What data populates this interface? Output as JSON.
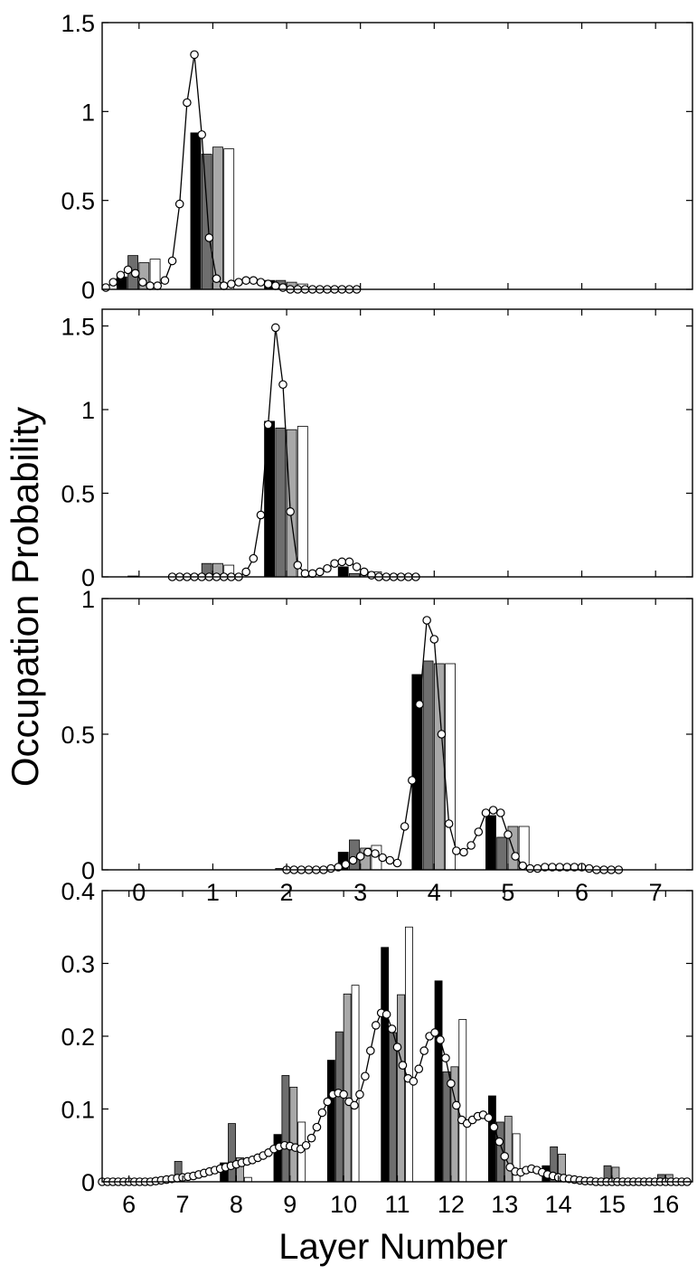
{
  "figure": {
    "ylabel": "Occupation Probability",
    "xlabel": "Layer Number"
  },
  "chart_data": [
    {
      "type": "bar",
      "panel": 1,
      "xlim": [
        -0.5,
        7.5
      ],
      "ylim": [
        0,
        1.5
      ],
      "xticks": [
        0,
        1,
        2,
        3,
        4,
        5,
        6,
        7
      ],
      "xtick_labels_visible": false,
      "yticks": [
        0,
        0.5,
        1,
        1.5
      ],
      "ytick_labels": [
        "0",
        "0.5",
        "1",
        "1.5"
      ],
      "bar_colors": [
        "#000000",
        "#6e6e6e",
        "#a8a8a8",
        "#ffffff"
      ],
      "bar_groups": [
        {
          "x": 0,
          "values": [
            0.07,
            0.19,
            0.15,
            0.17
          ]
        },
        {
          "x": 1,
          "values": [
            0.88,
            0.76,
            0.8,
            0.79
          ]
        },
        {
          "x": 2,
          "values": [
            0.05,
            0.05,
            0.04,
            0.03
          ]
        }
      ],
      "curve": {
        "x": [
          -0.45,
          -0.35,
          -0.25,
          -0.15,
          -0.05,
          0.05,
          0.15,
          0.25,
          0.35,
          0.45,
          0.55,
          0.65,
          0.75,
          0.85,
          0.95,
          1.05,
          1.15,
          1.25,
          1.35,
          1.45,
          1.55,
          1.65,
          1.75,
          1.85,
          1.95,
          2.05,
          2.15,
          2.25,
          2.35,
          2.45,
          2.55,
          2.65,
          2.75,
          2.85,
          2.95
        ],
        "y": [
          0.01,
          0.04,
          0.08,
          0.11,
          0.09,
          0.04,
          0.02,
          0.02,
          0.05,
          0.16,
          0.48,
          1.05,
          1.32,
          0.87,
          0.29,
          0.06,
          0.02,
          0.03,
          0.04,
          0.05,
          0.05,
          0.04,
          0.03,
          0.02,
          0.01,
          0.0,
          0.0,
          0.0,
          0.0,
          0.0,
          0.0,
          0.0,
          0.0,
          0.0,
          0.0
        ]
      }
    },
    {
      "type": "bar",
      "panel": 2,
      "xlim": [
        -0.5,
        7.5
      ],
      "ylim": [
        0,
        1.6
      ],
      "xticks": [
        0,
        1,
        2,
        3,
        4,
        5,
        6,
        7
      ],
      "xtick_labels_visible": false,
      "yticks": [
        0,
        0.5,
        1,
        1.5
      ],
      "ytick_labels": [
        "0",
        "0.5",
        "1",
        "1.5"
      ],
      "bar_colors": [
        "#000000",
        "#6e6e6e",
        "#a8a8a8",
        "#ffffff"
      ],
      "bar_groups": [
        {
          "x": 0,
          "values": [
            0.0,
            0.005,
            0.0,
            0.0
          ]
        },
        {
          "x": 1,
          "values": [
            0.0,
            0.08,
            0.08,
            0.07
          ]
        },
        {
          "x": 2,
          "values": [
            0.93,
            0.89,
            0.88,
            0.9
          ]
        },
        {
          "x": 3,
          "values": [
            0.06,
            0.02,
            0.03,
            0.03
          ]
        }
      ],
      "curve": {
        "x": [
          0.45,
          0.55,
          0.65,
          0.75,
          0.85,
          0.95,
          1.05,
          1.15,
          1.25,
          1.35,
          1.45,
          1.55,
          1.65,
          1.75,
          1.85,
          1.95,
          2.05,
          2.15,
          2.25,
          2.35,
          2.45,
          2.55,
          2.65,
          2.75,
          2.85,
          2.95,
          3.05,
          3.15,
          3.25,
          3.35,
          3.45,
          3.55,
          3.65,
          3.75
        ],
        "y": [
          0.0,
          0.0,
          0.0,
          0.0,
          0.0,
          0.0,
          0.0,
          0.0,
          0.0,
          0.0,
          0.03,
          0.11,
          0.37,
          0.91,
          1.49,
          1.15,
          0.39,
          0.07,
          0.02,
          0.02,
          0.03,
          0.05,
          0.08,
          0.09,
          0.09,
          0.06,
          0.03,
          0.01,
          0.0,
          0.0,
          0.0,
          0.0,
          0.0,
          0.0
        ]
      }
    },
    {
      "type": "bar",
      "panel": 3,
      "xlim": [
        -0.5,
        7.5
      ],
      "ylim": [
        0,
        1
      ],
      "xticks": [
        0,
        1,
        2,
        3,
        4,
        5,
        6,
        7
      ],
      "xtick_labels": [
        "0",
        "1",
        "2",
        "3",
        "4",
        "5",
        "6",
        "7"
      ],
      "xtick_labels_visible": true,
      "yticks": [
        0,
        0.5,
        1
      ],
      "ytick_labels": [
        "0",
        "0.5",
        "1"
      ],
      "bar_colors": [
        "#000000",
        "#6e6e6e",
        "#a8a8a8",
        "#ffffff"
      ],
      "bar_groups": [
        {
          "x": 2,
          "values": [
            0.0,
            0.005,
            0.0,
            0.0
          ]
        },
        {
          "x": 3,
          "values": [
            0.065,
            0.11,
            0.08,
            0.09
          ]
        },
        {
          "x": 4,
          "values": [
            0.72,
            0.77,
            0.76,
            0.76
          ]
        },
        {
          "x": 5,
          "values": [
            0.2,
            0.12,
            0.16,
            0.16
          ]
        }
      ],
      "curve": {
        "x": [
          2.0,
          2.1,
          2.2,
          2.3,
          2.4,
          2.5,
          2.6,
          2.7,
          2.8,
          2.9,
          3.0,
          3.1,
          3.2,
          3.3,
          3.4,
          3.5,
          3.6,
          3.7,
          3.8,
          3.9,
          4.0,
          4.1,
          4.2,
          4.3,
          4.4,
          4.5,
          4.6,
          4.7,
          4.8,
          4.9,
          5.0,
          5.1,
          5.2,
          5.3,
          5.4,
          5.5,
          5.6,
          5.7,
          5.8,
          5.9,
          6.0,
          6.1,
          6.2,
          6.3,
          6.4,
          6.5
        ],
        "y": [
          0.0,
          0.0,
          0.0,
          0.0,
          0.0,
          0.0,
          0.005,
          0.01,
          0.02,
          0.035,
          0.05,
          0.065,
          0.06,
          0.045,
          0.035,
          0.025,
          0.16,
          0.33,
          0.61,
          0.92,
          0.85,
          0.5,
          0.17,
          0.07,
          0.065,
          0.09,
          0.14,
          0.21,
          0.22,
          0.21,
          0.13,
          0.05,
          0.015,
          0.005,
          0.005,
          0.01,
          0.01,
          0.01,
          0.01,
          0.01,
          0.01,
          0.005,
          0.0,
          0.0,
          0.0,
          0.0
        ]
      }
    },
    {
      "type": "bar",
      "panel": 4,
      "xlim": [
        5.5,
        16.5
      ],
      "ylim": [
        0,
        0.4
      ],
      "xticks": [
        6,
        7,
        8,
        9,
        10,
        11,
        12,
        13,
        14,
        15,
        16
      ],
      "xtick_labels": [
        "6",
        "7",
        "8",
        "9",
        "10",
        "11",
        "12",
        "13",
        "14",
        "15",
        "16"
      ],
      "xtick_labels_visible": true,
      "yticks": [
        0,
        0.1,
        0.2,
        0.3,
        0.4
      ],
      "ytick_labels": [
        "0",
        "0.1",
        "0.2",
        "0.3",
        "0.4"
      ],
      "bar_colors": [
        "#000000",
        "#6e6e6e",
        "#a8a8a8",
        "#ffffff"
      ],
      "bar_groups": [
        {
          "x": 7,
          "values": [
            0.0,
            0.028,
            0.0,
            0.0
          ]
        },
        {
          "x": 8,
          "values": [
            0.026,
            0.08,
            0.033,
            0.006
          ]
        },
        {
          "x": 9,
          "values": [
            0.065,
            0.146,
            0.13,
            0.082
          ]
        },
        {
          "x": 10,
          "values": [
            0.167,
            0.206,
            0.258,
            0.27
          ]
        },
        {
          "x": 11,
          "values": [
            0.322,
            0.205,
            0.257,
            0.35
          ]
        },
        {
          "x": 12,
          "values": [
            0.276,
            0.151,
            0.158,
            0.223
          ]
        },
        {
          "x": 13,
          "values": [
            0.118,
            0.082,
            0.09,
            0.066
          ]
        },
        {
          "x": 14,
          "values": [
            0.022,
            0.048,
            0.038,
            0.0
          ]
        },
        {
          "x": 15,
          "values": [
            0.0,
            0.022,
            0.02,
            0.0
          ]
        },
        {
          "x": 16,
          "values": [
            0.0,
            0.01,
            0.01,
            0.0
          ]
        }
      ],
      "curve": {
        "x": [
          5.5,
          5.6,
          5.7,
          5.8,
          5.9,
          6.0,
          6.1,
          6.2,
          6.3,
          6.4,
          6.5,
          6.6,
          6.7,
          6.8,
          6.9,
          7.0,
          7.1,
          7.2,
          7.3,
          7.4,
          7.5,
          7.6,
          7.7,
          7.8,
          7.9,
          8.0,
          8.1,
          8.2,
          8.3,
          8.4,
          8.5,
          8.6,
          8.7,
          8.8,
          8.9,
          9.0,
          9.1,
          9.2,
          9.3,
          9.4,
          9.5,
          9.6,
          9.7,
          9.8,
          9.9,
          10.0,
          10.1,
          10.2,
          10.3,
          10.4,
          10.5,
          10.6,
          10.7,
          10.8,
          10.9,
          11.0,
          11.1,
          11.2,
          11.3,
          11.4,
          11.5,
          11.6,
          11.7,
          11.8,
          11.9,
          12.0,
          12.1,
          12.2,
          12.3,
          12.4,
          12.5,
          12.6,
          12.7,
          12.8,
          12.9,
          13.0,
          13.1,
          13.2,
          13.3,
          13.4,
          13.5,
          13.6,
          13.7,
          13.8,
          13.9,
          14.0,
          14.1,
          14.2,
          14.3,
          14.4,
          14.5,
          14.6,
          14.7,
          14.8,
          14.9,
          15.0,
          15.1,
          15.2,
          15.3,
          15.4,
          15.5,
          15.6,
          15.7,
          15.8,
          15.9,
          16.0,
          16.1,
          16.2,
          16.3,
          16.4
        ],
        "y": [
          0.0,
          0.0,
          0.0,
          0.0,
          0.0,
          0.0,
          0.0,
          0.0,
          0.0,
          0.0,
          0.001,
          0.002,
          0.003,
          0.004,
          0.005,
          0.006,
          0.007,
          0.008,
          0.01,
          0.012,
          0.014,
          0.016,
          0.018,
          0.02,
          0.022,
          0.024,
          0.026,
          0.028,
          0.03,
          0.033,
          0.036,
          0.04,
          0.045,
          0.048,
          0.05,
          0.049,
          0.047,
          0.045,
          0.05,
          0.06,
          0.075,
          0.095,
          0.11,
          0.12,
          0.122,
          0.12,
          0.11,
          0.105,
          0.12,
          0.145,
          0.18,
          0.215,
          0.232,
          0.23,
          0.21,
          0.185,
          0.16,
          0.142,
          0.138,
          0.155,
          0.18,
          0.2,
          0.205,
          0.195,
          0.17,
          0.135,
          0.105,
          0.085,
          0.08,
          0.085,
          0.09,
          0.092,
          0.088,
          0.075,
          0.055,
          0.035,
          0.02,
          0.014,
          0.013,
          0.016,
          0.018,
          0.016,
          0.013,
          0.01,
          0.008,
          0.006,
          0.005,
          0.004,
          0.003,
          0.002,
          0.001,
          0.001,
          0.0,
          0.0,
          0.0,
          0.0,
          0.0,
          0.0,
          0.0,
          0.0,
          0.0,
          0.0,
          0.0,
          0.0,
          0.0,
          0.0,
          0.0,
          0.0,
          0.0,
          0.0
        ]
      }
    }
  ]
}
